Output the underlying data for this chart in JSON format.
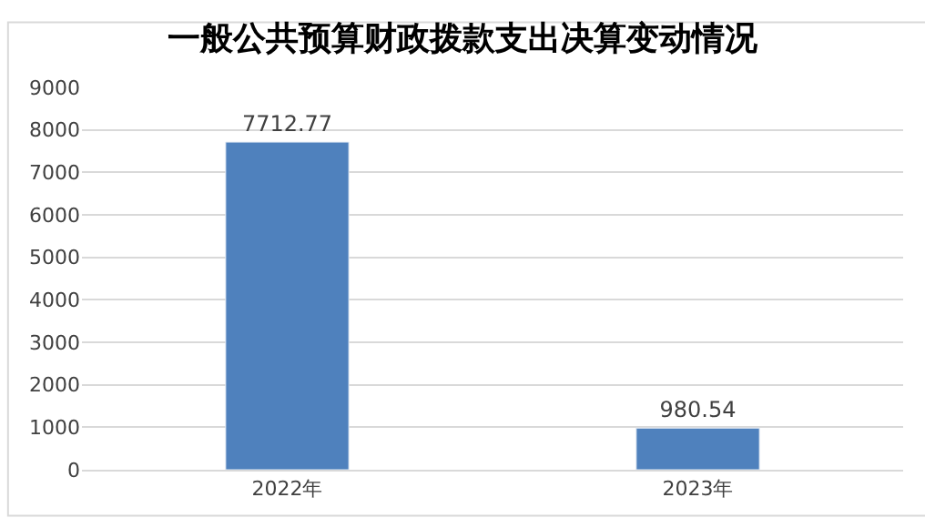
{
  "chart_data": {
    "type": "bar",
    "title": "一般公共预算财政拨款支出决算变动情况",
    "categories": [
      "2022年",
      "2023年"
    ],
    "values": [
      7712.77,
      980.54
    ],
    "color": "#4f81bd",
    "ylim": [
      0,
      9000
    ],
    "yticks": [
      0,
      1000,
      2000,
      3000,
      4000,
      5000,
      6000,
      7000,
      8000,
      9000
    ],
    "grid": "y",
    "data_labels": true,
    "legend": false
  }
}
